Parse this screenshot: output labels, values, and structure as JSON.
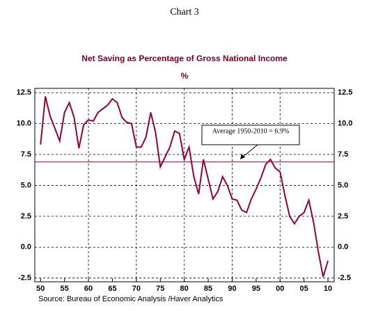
{
  "chart_data": {
    "type": "line",
    "header": "Chart 3",
    "title": "Net Saving as Percentage of Gross National Income",
    "subtitle": "%",
    "annotation": "Average 1950-2010 = 6.9%",
    "source": "Source:  Bureau of Economic Analysis /Haver Analytics",
    "x": [
      1950,
      1951,
      1952,
      1953,
      1954,
      1955,
      1956,
      1957,
      1958,
      1959,
      1960,
      1961,
      1962,
      1963,
      1964,
      1965,
      1966,
      1967,
      1968,
      1969,
      1970,
      1971,
      1972,
      1973,
      1974,
      1975,
      1976,
      1977,
      1978,
      1979,
      1980,
      1981,
      1982,
      1983,
      1984,
      1985,
      1986,
      1987,
      1988,
      1989,
      1990,
      1991,
      1992,
      1993,
      1994,
      1995,
      1996,
      1997,
      1998,
      1999,
      2000,
      2001,
      2002,
      2003,
      2004,
      2005,
      2006,
      2007,
      2008,
      2009,
      2010
    ],
    "series": [
      {
        "name": "Net Saving",
        "color": "#990033",
        "values": [
          8.3,
          12.2,
          10.6,
          9.6,
          8.6,
          10.9,
          11.7,
          10.5,
          8.0,
          9.9,
          10.3,
          10.2,
          10.9,
          11.2,
          11.5,
          12.0,
          11.7,
          10.5,
          10.1,
          10.0,
          8.1,
          8.1,
          8.9,
          10.9,
          9.3,
          6.5,
          7.3,
          8.1,
          9.4,
          9.2,
          7.1,
          8.1,
          5.7,
          4.3,
          7.1,
          5.5,
          3.9,
          4.5,
          5.7,
          5.0,
          3.9,
          3.8,
          3.0,
          2.8,
          3.9,
          4.7,
          5.6,
          6.7,
          7.1,
          6.4,
          6.1,
          4.2,
          2.5,
          1.9,
          2.5,
          2.8,
          3.8,
          2.0,
          -0.4,
          -2.4,
          -1.1
        ]
      }
    ],
    "average": {
      "value": 6.9,
      "color": "#990033"
    },
    "xlim": [
      1948.8,
      2011.3
    ],
    "xticks": [
      {
        "value": 1950,
        "label": "50"
      },
      {
        "value": 1955,
        "label": "55"
      },
      {
        "value": 1960,
        "label": "60"
      },
      {
        "value": 1965,
        "label": "65"
      },
      {
        "value": 1970,
        "label": "70"
      },
      {
        "value": 1975,
        "label": "75"
      },
      {
        "value": 1980,
        "label": "80"
      },
      {
        "value": 1985,
        "label": "85"
      },
      {
        "value": 1990,
        "label": "90"
      },
      {
        "value": 1995,
        "label": "95"
      },
      {
        "value": 2000,
        "label": "00"
      },
      {
        "value": 2005,
        "label": "05"
      },
      {
        "value": 2010,
        "label": "10"
      }
    ],
    "xgrid": [
      1960,
      1970,
      1980,
      1990,
      2000
    ],
    "ylim": [
      -2.8,
      12.85
    ],
    "yticks": [
      {
        "value": 12.5,
        "label": "12.5"
      },
      {
        "value": 10,
        "label": "10.0"
      },
      {
        "value": 7.5,
        "label": "7.5"
      },
      {
        "value": 5,
        "label": "5.0"
      },
      {
        "value": 2.5,
        "label": "2.5"
      },
      {
        "value": 0,
        "label": "0.0"
      },
      {
        "value": -2.5,
        "label": "-2.5"
      }
    ],
    "grid": true
  }
}
